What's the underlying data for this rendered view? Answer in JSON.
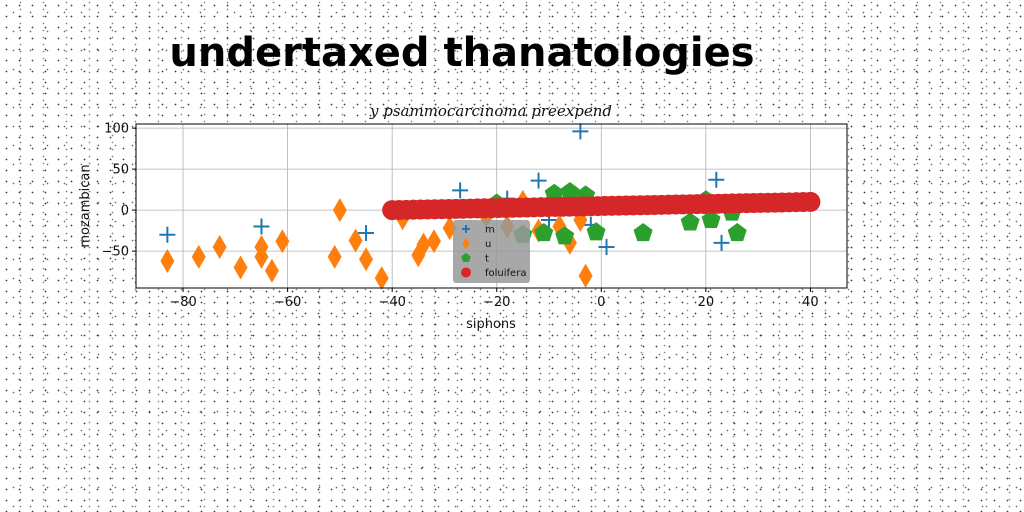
{
  "figure_title": "undertaxed thanatologies",
  "chart_data": {
    "type": "scatter",
    "title": "y psammocarcinoma preexpend",
    "xlabel": "siphons",
    "ylabel": "mozambican",
    "xlim": [
      -89,
      47
    ],
    "ylim": [
      -95,
      105
    ],
    "xticks": [
      -80,
      -60,
      -40,
      -20,
      0,
      20,
      40
    ],
    "yticks": [
      -50,
      0,
      50,
      100
    ],
    "grid": true,
    "legend_position": "bottom-center",
    "series": [
      {
        "name": "m",
        "marker": "plus",
        "color": "#1f77b4",
        "points": [
          [
            -83,
            -30
          ],
          [
            -65,
            -20
          ],
          [
            -45,
            -28
          ],
          [
            -27,
            24
          ],
          [
            -18,
            14
          ],
          [
            -12,
            36
          ],
          [
            -10,
            -12
          ],
          [
            -4,
            96
          ],
          [
            -2,
            -18
          ],
          [
            1,
            -45
          ],
          [
            22,
            37
          ],
          [
            23,
            -40
          ]
        ]
      },
      {
        "name": "u",
        "marker": "diamond",
        "color": "#ff7f0e",
        "points": [
          [
            -83,
            -62
          ],
          [
            -77,
            -57
          ],
          [
            -73,
            -45
          ],
          [
            -69,
            -70
          ],
          [
            -65,
            -45
          ],
          [
            -65,
            -57
          ],
          [
            -63,
            -74
          ],
          [
            -61,
            -38
          ],
          [
            -51,
            -57
          ],
          [
            -50,
            0
          ],
          [
            -47,
            -37
          ],
          [
            -45,
            -60
          ],
          [
            -42,
            -83
          ],
          [
            -38,
            -10
          ],
          [
            -35,
            -55
          ],
          [
            -34,
            -42
          ],
          [
            -32,
            -38
          ],
          [
            -29,
            -22
          ],
          [
            -22,
            -8
          ],
          [
            -18,
            -20
          ],
          [
            -15,
            10
          ],
          [
            -12,
            -25
          ],
          [
            -8,
            -20
          ],
          [
            -6,
            -40
          ],
          [
            -4,
            -12
          ],
          [
            -3,
            -80
          ]
        ]
      },
      {
        "name": "t",
        "marker": "pentagon",
        "color": "#2ca02c",
        "points": [
          [
            -28,
            0
          ],
          [
            -20,
            8
          ],
          [
            -15,
            -30
          ],
          [
            -11,
            -28
          ],
          [
            -9,
            20
          ],
          [
            -7,
            -32
          ],
          [
            -6,
            22
          ],
          [
            -3,
            18
          ],
          [
            -1,
            -27
          ],
          [
            8,
            -28
          ],
          [
            12,
            5
          ],
          [
            17,
            -15
          ],
          [
            20,
            12
          ],
          [
            21,
            -12
          ],
          [
            24,
            6
          ],
          [
            25,
            -3
          ],
          [
            26,
            -28
          ]
        ]
      },
      {
        "name": "foluifera",
        "marker": "circle",
        "color": "#d62728",
        "x_range": [
          -40,
          40
        ],
        "y_range": [
          0,
          10
        ],
        "count": 60
      }
    ]
  }
}
